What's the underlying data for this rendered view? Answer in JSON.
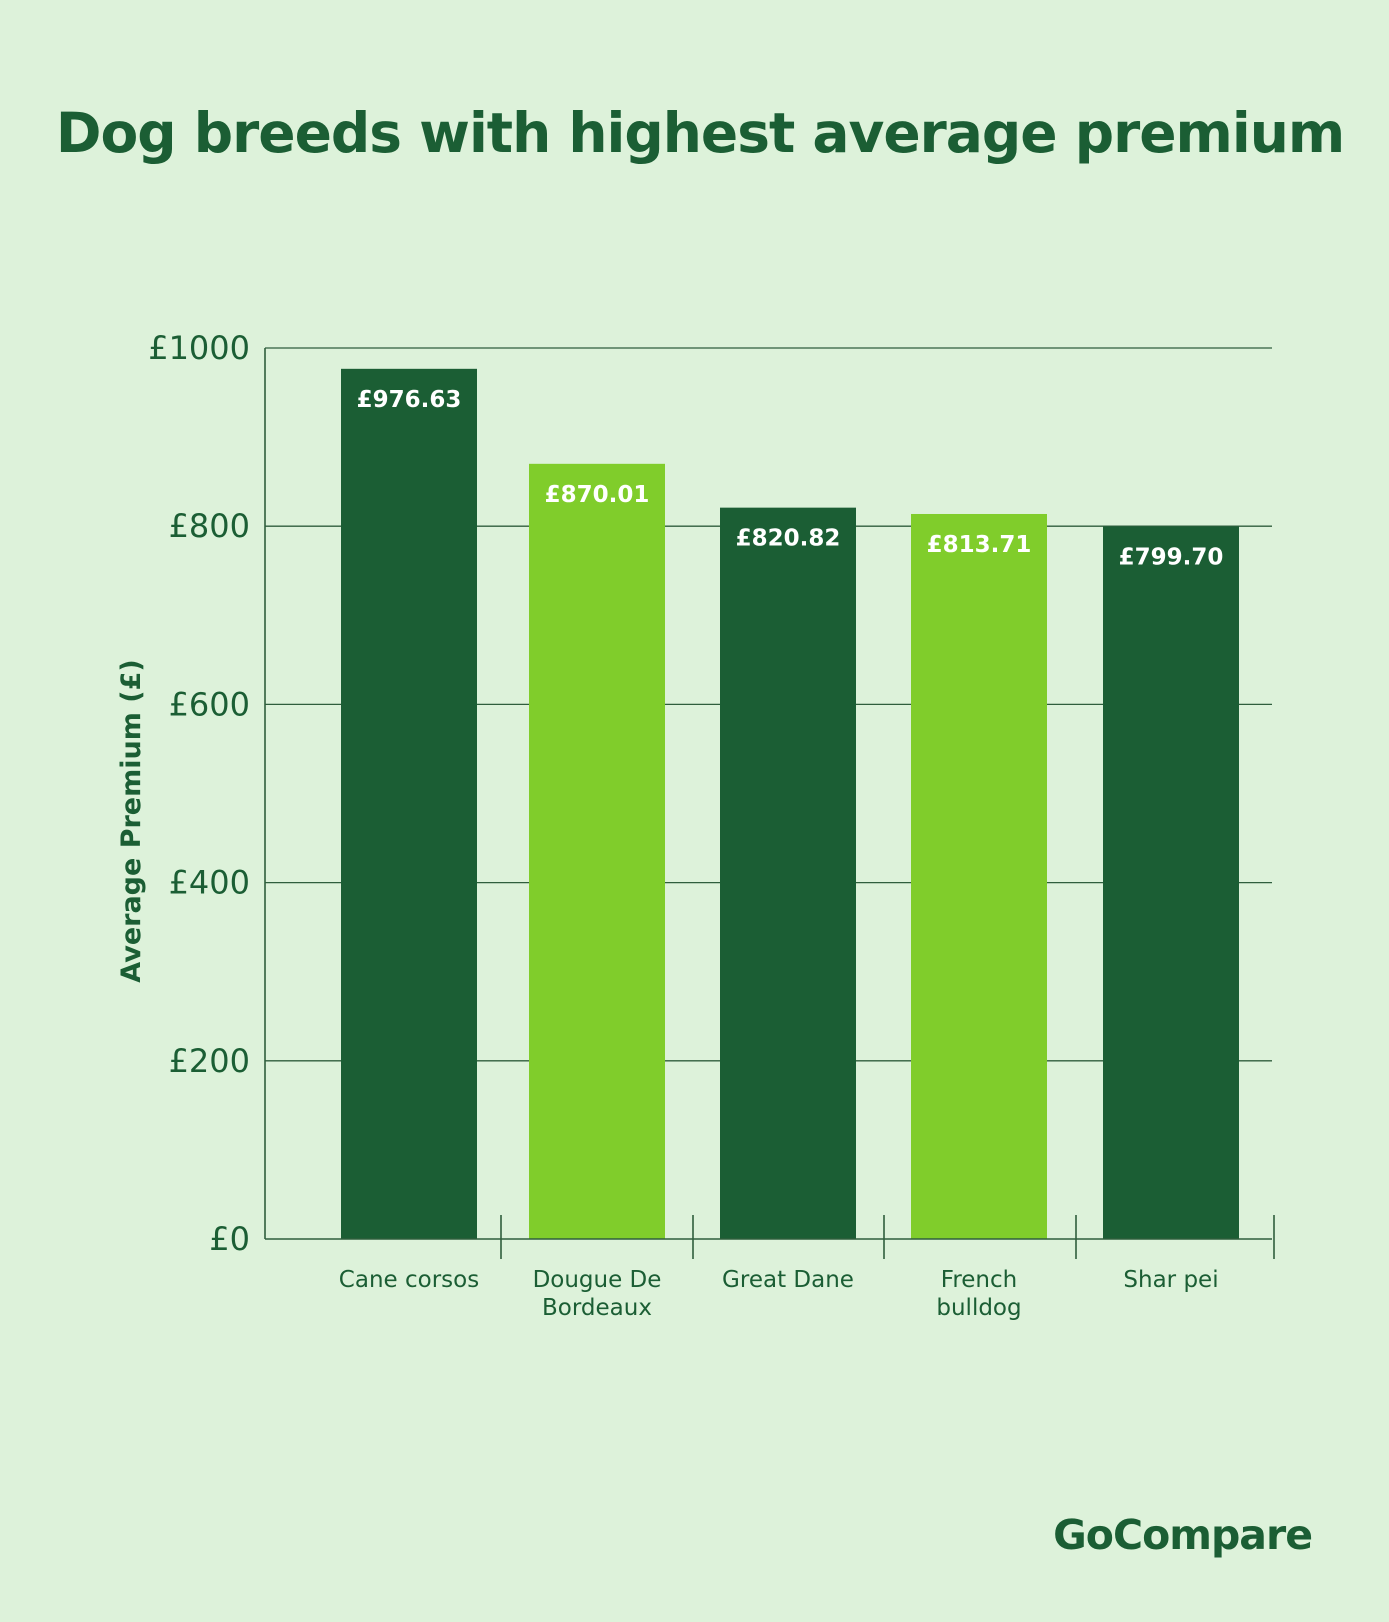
{
  "chart_data": {
    "type": "bar",
    "title": "Dog breeds with highest average premium",
    "ylabel": "Average Premium (£)",
    "xlabel": "",
    "ylim": [
      0,
      1000
    ],
    "yticks": [
      "£0",
      "£200",
      "£400",
      "£600",
      "£800",
      "£1000"
    ],
    "ytick_values": [
      0,
      200,
      400,
      600,
      800,
      1000
    ],
    "grid": true,
    "categories": [
      [
        "Cane corsos"
      ],
      [
        "Dougue De",
        "Bordeaux"
      ],
      [
        "Great Dane"
      ],
      [
        "French",
        "bulldog"
      ],
      [
        "Shar pei"
      ]
    ],
    "values": [
      976.63,
      870.01,
      820.82,
      813.71,
      799.7
    ],
    "value_labels": [
      "£976.63",
      "£870.01",
      "£820.82",
      "£813.71",
      "£799.70"
    ],
    "bar_colors": [
      "#1b5e34",
      "#80cd2b",
      "#1b5e34",
      "#80cd2b",
      "#1b5e34"
    ]
  },
  "brand": "GoCompare",
  "colors": {
    "background": "#ddf2da",
    "dark_green": "#1b5e34",
    "light_green": "#80cd2b",
    "text": "#1b5e34"
  }
}
